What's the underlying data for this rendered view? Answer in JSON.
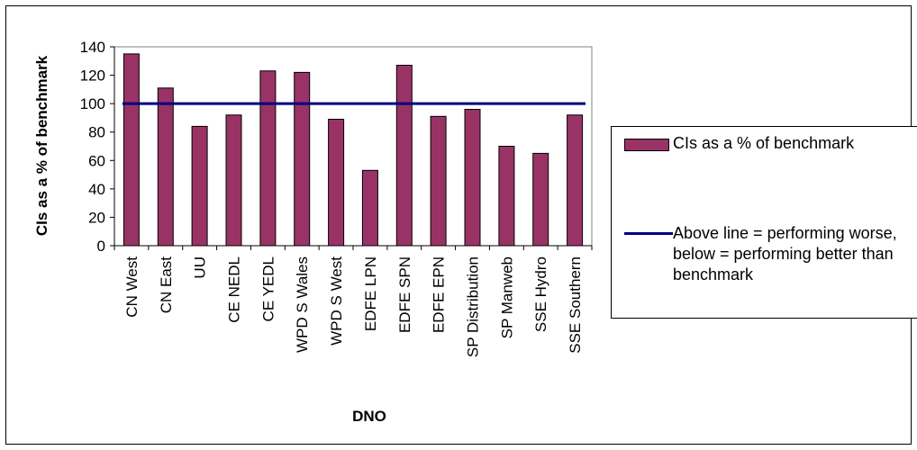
{
  "chart_data": {
    "type": "bar",
    "categories": [
      "CN West",
      "CN East",
      "UU",
      "CE NEDL",
      "CE YEDL",
      "WPD S Wales",
      "WPD S West",
      "EDFE LPN",
      "EDFE SPN",
      "EDFE EPN",
      "SP Distribution",
      "SP Manweb",
      "SSE Hydro",
      "SSE Southern"
    ],
    "series": [
      {
        "name": "CIs as a % of benchmark",
        "values": [
          135,
          111,
          84,
          92,
          123,
          122,
          89,
          53,
          127,
          91,
          96,
          70,
          65,
          92
        ],
        "color": "#993366"
      }
    ],
    "benchmark": {
      "value": 100,
      "label": "Above line = performing worse, below = performing better than benchmark",
      "color": "#000080"
    },
    "xlabel": "DNO",
    "ylabel": "CIs as a % of benchmark",
    "ylim": [
      0,
      140
    ],
    "yticks": [
      "0",
      "20",
      "40",
      "60",
      "80",
      "100",
      "120",
      "140"
    ],
    "grid": false,
    "legend_position": "right"
  }
}
